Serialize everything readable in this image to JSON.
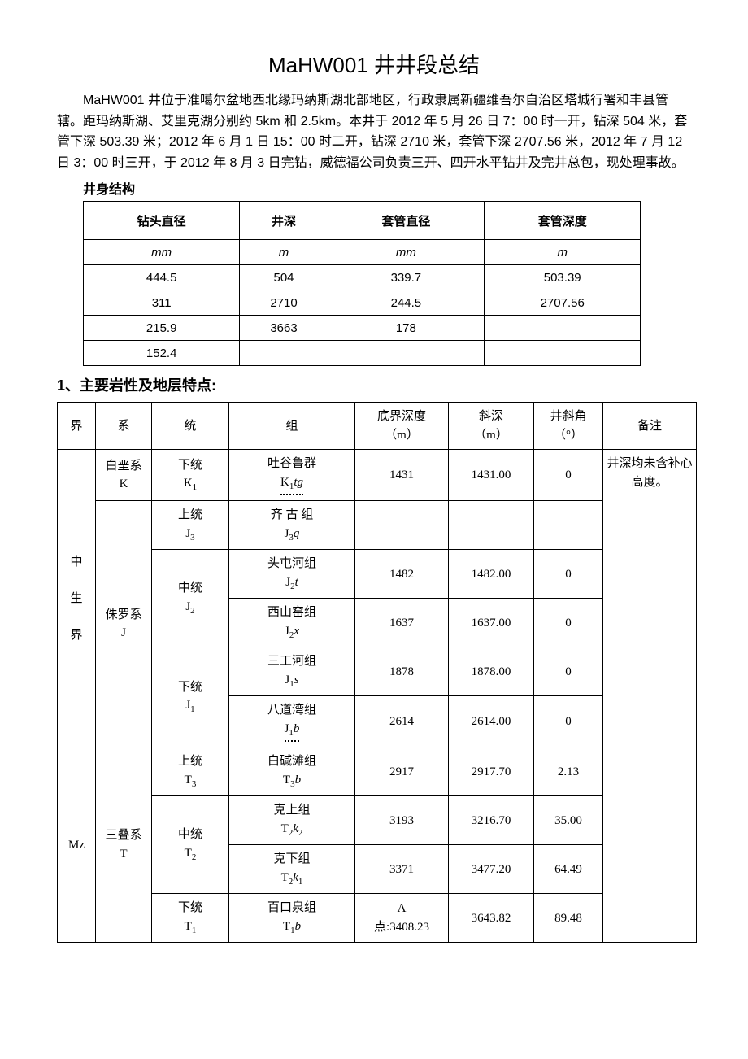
{
  "title": "MaHW001 井井段总结",
  "intro": "MaHW001 井位于准噶尔盆地西北缘玛纳斯湖北部地区，行政隶属新疆维吾尔自治区塔城行署和丰县管辖。距玛纳斯湖、艾里克湖分别约 5km 和 2.5km。本井于 2012 年 5 月 26 日 7：00 时一开，钻深 504 米，套管下深 503.39 米；2012 年 6 月 1 日 15：00 时二开，钻深 2710 米，套管下深 2707.56 米，2012 年 7 月 12 日 3：00 时三开，于 2012 年 8 月 3 日完钻，威德福公司负责三开、四开水平钻井及完井总包，现处理事故。",
  "subheading_struct": "井身结构",
  "struct_table": {
    "headers": [
      "钻头直径",
      "井深",
      "套管直径",
      "套管深度"
    ],
    "units": [
      "mm",
      "m",
      "mm",
      "m"
    ],
    "rows": [
      [
        "444.5",
        "504",
        "339.7",
        "503.39"
      ],
      [
        "311",
        "2710",
        "244.5",
        "2707.56"
      ],
      [
        "215.9",
        "3663",
        "178",
        ""
      ],
      [
        "152.4",
        "",
        "",
        ""
      ]
    ]
  },
  "section1_heading": "1、主要岩性及地层特点:",
  "geo_table": {
    "headers": {
      "jie": "界",
      "xi": "系",
      "tong": "统",
      "zu": "组",
      "depth": "底界深度\n（m）",
      "xieshen": "斜深\n（m）",
      "angle": "井斜角\n（°）",
      "note": "备注"
    },
    "note_text": "井深均未含补心高度。",
    "era_col_1": "中\n\n生\n\n界",
    "era_col_2": "Mz",
    "rows": [
      {
        "xi_1": "白垩系",
        "xi_2": "K",
        "tong_1": "下统",
        "tong_2": "K₁",
        "zu_1": "吐谷鲁群",
        "zu_2": "K₁tg",
        "depth": "1431",
        "xieshen": "1431.00",
        "angle": "0"
      },
      {
        "xi_1": "侏罗系",
        "xi_2": "J",
        "tong_1": "上统",
        "tong_2": "J₃",
        "zu_1": "齐 古 组",
        "zu_2": "J₃q",
        "depth": "",
        "xieshen": "",
        "angle": ""
      },
      {
        "tong_1": "中统",
        "tong_2": "J₂",
        "zu_1": "头屯河组",
        "zu_2": "J₂t",
        "depth": "1482",
        "xieshen": "1482.00",
        "angle": "0"
      },
      {
        "zu_1": "西山窑组",
        "zu_2": "J₂x",
        "depth": "1637",
        "xieshen": "1637.00",
        "angle": "0"
      },
      {
        "tong_1": "下统",
        "tong_2": "J₁",
        "zu_1": "三工河组",
        "zu_2": "J₁s",
        "depth": "1878",
        "xieshen": "1878.00",
        "angle": "0"
      },
      {
        "zu_1": "八道湾组",
        "zu_2": "J₁b",
        "depth": "2614",
        "xieshen": "2614.00",
        "angle": "0"
      },
      {
        "xi_1": "三叠系",
        "xi_2": "T",
        "tong_1": "上统",
        "tong_2": "T₃",
        "zu_1": "白碱滩组",
        "zu_2": "T₃b",
        "depth": "2917",
        "xieshen": "2917.70",
        "angle": "2.13"
      },
      {
        "tong_1": "中统",
        "tong_2": "T₂",
        "zu_1": "克上组",
        "zu_2": "T₂k₂",
        "depth": "3193",
        "xieshen": "3216.70",
        "angle": "35.00"
      },
      {
        "zu_1": "克下组",
        "zu_2": "T₂k₁",
        "depth": "3371",
        "xieshen": "3477.20",
        "angle": "64.49"
      },
      {
        "tong_1": "下统",
        "tong_2": "T₁",
        "zu_1": "百口泉组",
        "zu_2": "T₁b",
        "depth": "A\n点:3408.23",
        "xieshen": "3643.82",
        "angle": "89.48"
      }
    ]
  }
}
